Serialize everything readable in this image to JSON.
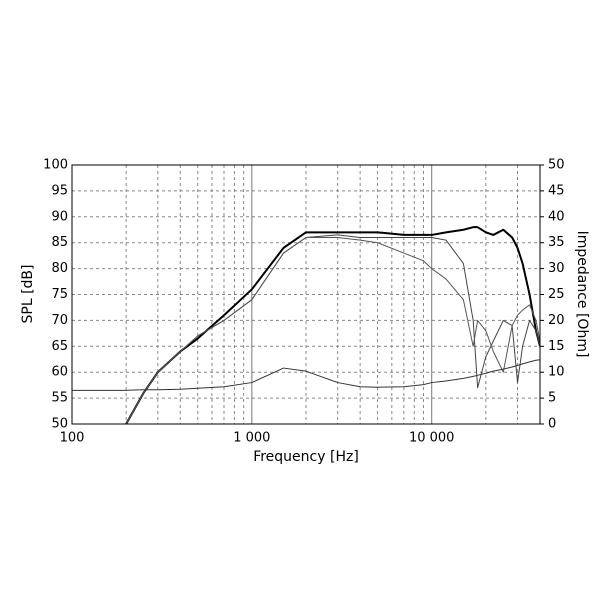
{
  "chart_data": {
    "type": "line",
    "x_label": "Frequency [Hz]",
    "y_label": "SPL [dB]",
    "y2_label": "Impedance [Ohm]",
    "xscale": "log",
    "grid": true,
    "xlim": [
      100,
      40000
    ],
    "xticks": [
      {
        "value": 100,
        "label": "100"
      },
      {
        "value": 1000,
        "label": "1 000"
      },
      {
        "value": 10000,
        "label": "10 000"
      }
    ],
    "xminorticks": [
      200,
      300,
      400,
      500,
      600,
      700,
      800,
      900,
      2000,
      3000,
      4000,
      5000,
      6000,
      7000,
      8000,
      9000,
      20000,
      30000
    ],
    "ylim": [
      50,
      100
    ],
    "yticks": [
      50,
      55,
      60,
      65,
      70,
      75,
      80,
      85,
      90,
      95,
      100
    ],
    "y2lim": [
      0,
      50
    ],
    "y2ticks": [
      0,
      5,
      10,
      15,
      20,
      25,
      30,
      35,
      40,
      45,
      50
    ],
    "x": [
      100,
      150,
      200,
      250,
      300,
      400,
      500,
      700,
      1000,
      1500,
      2000,
      3000,
      4000,
      5000,
      7000,
      9000,
      10000,
      12000,
      15000,
      17000,
      18000,
      20000,
      22000,
      25000,
      28000,
      30000,
      32000,
      35000,
      38000,
      40000
    ],
    "series": [
      {
        "color": "#000000",
        "width": 2,
        "values": [
          null,
          null,
          50,
          56,
          60,
          64,
          66.5,
          71,
          76,
          84,
          87,
          87,
          87,
          87,
          86.5,
          86.5,
          86.5,
          87,
          87.5,
          88,
          88,
          87,
          86.5,
          87.5,
          86,
          84,
          81,
          75,
          68,
          65
        ]
      },
      {
        "color": "#444444",
        "width": 1,
        "values": [
          null,
          null,
          50,
          56,
          60,
          64,
          67,
          70,
          74,
          83,
          86,
          86.5,
          86,
          86,
          86,
          86,
          86,
          85.5,
          81,
          70,
          57,
          63,
          66,
          70,
          69,
          58,
          65,
          70,
          68,
          65
        ]
      },
      {
        "color": "#555555",
        "width": 1,
        "values": [
          null,
          null,
          50,
          56,
          60,
          64,
          67,
          70,
          74,
          83,
          86,
          86,
          85.5,
          85,
          83,
          81.5,
          80,
          78,
          74,
          65,
          70,
          68,
          64,
          60,
          69,
          71,
          72,
          73,
          70,
          66
        ]
      },
      {
        "color": "#333333",
        "width": 1,
        "axis": "y2",
        "values": [
          6.5,
          6.5,
          6.5,
          6.6,
          6.6,
          6.7,
          6.9,
          7.2,
          8,
          10.8,
          10.2,
          8,
          7.2,
          7.1,
          7.2,
          7.6,
          8,
          8.3,
          8.8,
          9.2,
          9.4,
          9.8,
          10.2,
          10.6,
          11,
          11.3,
          11.6,
          12,
          12.3,
          12.4
        ]
      }
    ]
  }
}
